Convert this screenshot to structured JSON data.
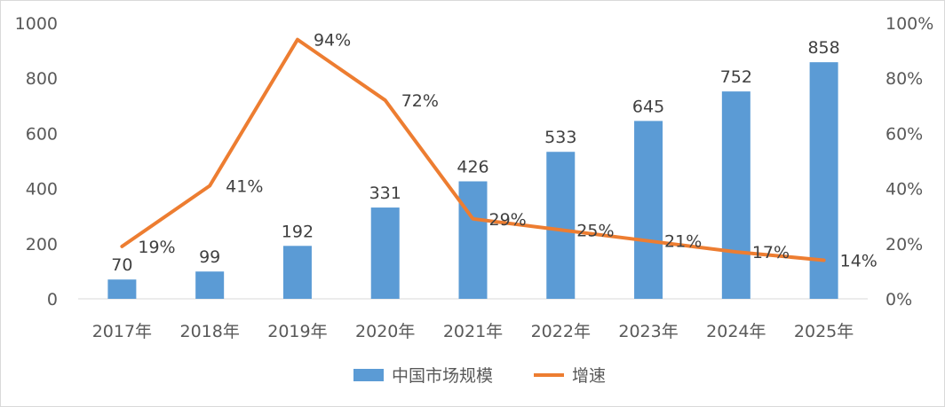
{
  "chart_data": {
    "type": "bar",
    "categories": [
      "2017年",
      "2018年",
      "2019年",
      "2020年",
      "2021年",
      "2022年",
      "2023年",
      "2024年",
      "2025年"
    ],
    "series": [
      {
        "name": "中国市场规模",
        "type": "bar",
        "axis": "left",
        "values": [
          70,
          99,
          192,
          331,
          426,
          533,
          645,
          752,
          858
        ],
        "labels": [
          "70",
          "99",
          "192",
          "331",
          "426",
          "533",
          "645",
          "752",
          "858"
        ],
        "color": "#5b9bd5"
      },
      {
        "name": "增速",
        "type": "line",
        "axis": "right",
        "values": [
          19,
          41,
          94,
          72,
          29,
          25,
          21,
          17,
          14
        ],
        "labels": [
          "19%",
          "41%",
          "94%",
          "72%",
          "29%",
          "25%",
          "21%",
          "17%",
          "14%"
        ],
        "color": "#ed7d31"
      }
    ],
    "y_left": {
      "min": 0,
      "max": 1000,
      "ticks": [
        "0",
        "200",
        "400",
        "600",
        "800",
        "1000"
      ]
    },
    "y_right": {
      "min": 0,
      "max": 100,
      "ticks": [
        "0%",
        "20%",
        "40%",
        "60%",
        "80%",
        "100%"
      ]
    },
    "grid": false,
    "legend_position": "bottom"
  }
}
